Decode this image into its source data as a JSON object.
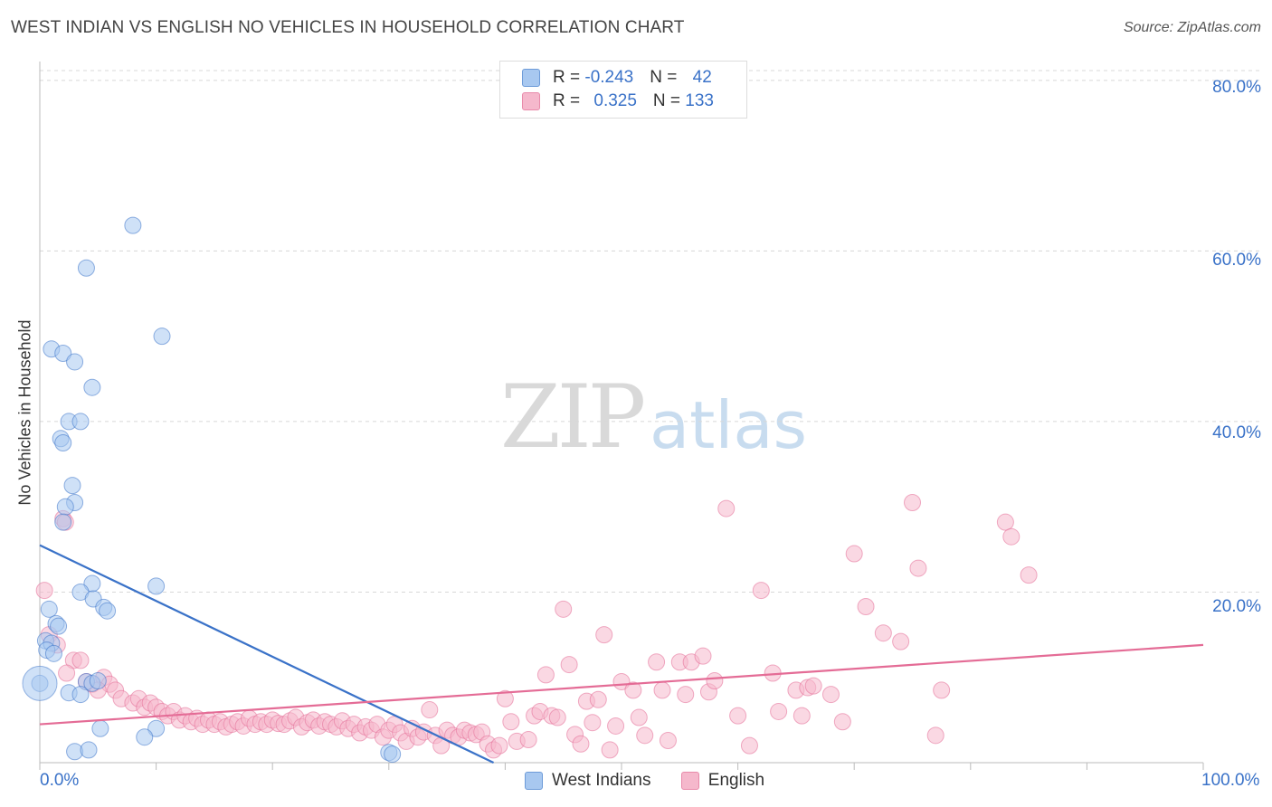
{
  "title": "WEST INDIAN VS ENGLISH NO VEHICLES IN HOUSEHOLD CORRELATION CHART",
  "source": "Source: ZipAtlas.com",
  "watermark": {
    "zip": "ZIP",
    "atlas": "atlas"
  },
  "legend": {
    "rows": [
      {
        "r_label": "R = ",
        "r_value": "-0.243",
        "n_label": "N = ",
        "n_value": "42",
        "color": "#a8c8f0"
      },
      {
        "r_label": "R = ",
        "r_value": "0.325",
        "n_label": "N = ",
        "n_value": "133",
        "color": "#f5b8cc"
      }
    ]
  },
  "bottom_legend": [
    {
      "label": "West Indians",
      "color": "#a8c8f0"
    },
    {
      "label": "English",
      "color": "#f5b8cc"
    }
  ],
  "y_ticks": [
    "80.0%",
    "60.0%",
    "40.0%",
    "20.0%"
  ],
  "x_ticks": {
    "left": "0.0%",
    "right": "100.0%"
  },
  "chart_data": {
    "type": "scatter",
    "title": "WEST INDIAN VS ENGLISH NO VEHICLES IN HOUSEHOLD CORRELATION CHART",
    "xlabel": "",
    "ylabel": "No Vehicles in Household",
    "xlim": [
      0,
      100
    ],
    "ylim": [
      0,
      82
    ],
    "series": [
      {
        "name": "West Indians",
        "color": "#3a72c8",
        "fill": "#a8c8f0",
        "trend": {
          "x0": 0,
          "y0": 25.5,
          "x1": 39,
          "y1": 0
        },
        "points": [
          [
            8,
            63
          ],
          [
            4,
            58
          ],
          [
            10.5,
            50
          ],
          [
            1,
            48.5
          ],
          [
            2,
            48
          ],
          [
            3,
            47
          ],
          [
            4.5,
            44
          ],
          [
            2.5,
            40
          ],
          [
            3.5,
            40
          ],
          [
            1.8,
            38
          ],
          [
            2,
            37.5
          ],
          [
            2.8,
            32.5
          ],
          [
            3,
            30.5
          ],
          [
            2.2,
            30
          ],
          [
            2,
            28.2
          ],
          [
            10,
            20.7
          ],
          [
            4.5,
            21
          ],
          [
            3.5,
            20
          ],
          [
            4.6,
            19.2
          ],
          [
            0.8,
            18
          ],
          [
            5.5,
            18.2
          ],
          [
            5.8,
            17.8
          ],
          [
            1.4,
            16.3
          ],
          [
            1.6,
            16
          ],
          [
            0.5,
            14.3
          ],
          [
            1,
            14
          ],
          [
            0.6,
            13.2
          ],
          [
            1.2,
            12.8
          ],
          [
            4,
            9.5
          ],
          [
            4.5,
            9.3
          ],
          [
            5,
            9.6
          ],
          [
            0,
            9.3
          ],
          [
            2.5,
            8.2
          ],
          [
            3.5,
            8
          ],
          [
            5.2,
            4
          ],
          [
            10,
            4
          ],
          [
            9,
            3
          ],
          [
            3,
            1.3
          ],
          [
            4.2,
            1.5
          ],
          [
            30,
            1.2
          ],
          [
            30.3,
            1
          ]
        ]
      },
      {
        "name": "English",
        "color": "#e46c96",
        "fill": "#f5b8cc",
        "trend": {
          "x0": 0,
          "y0": 4.5,
          "x1": 100,
          "y1": 13.8
        },
        "points": [
          [
            0.4,
            20.2
          ],
          [
            2,
            28.6
          ],
          [
            2.2,
            28.2
          ],
          [
            0.8,
            15
          ],
          [
            1.5,
            13.8
          ],
          [
            2.9,
            12
          ],
          [
            3.5,
            12
          ],
          [
            2.3,
            10.5
          ],
          [
            4.5,
            9.2
          ],
          [
            5.5,
            10
          ],
          [
            6,
            9.2
          ],
          [
            4,
            9.5
          ],
          [
            5,
            8.5
          ],
          [
            6.5,
            8.5
          ],
          [
            7,
            7.5
          ],
          [
            8,
            7
          ],
          [
            8.5,
            7.5
          ],
          [
            9,
            6.5
          ],
          [
            9.5,
            7
          ],
          [
            10,
            6.5
          ],
          [
            10.5,
            6
          ],
          [
            11,
            5.5
          ],
          [
            11.5,
            6
          ],
          [
            12,
            5
          ],
          [
            12.5,
            5.5
          ],
          [
            13,
            4.8
          ],
          [
            13.5,
            5.2
          ],
          [
            14,
            4.5
          ],
          [
            14.5,
            5
          ],
          [
            15,
            4.5
          ],
          [
            15.5,
            4.8
          ],
          [
            16,
            4.2
          ],
          [
            16.5,
            4.5
          ],
          [
            17,
            4.8
          ],
          [
            17.5,
            4.3
          ],
          [
            18,
            5.2
          ],
          [
            18.5,
            4.5
          ],
          [
            19,
            4.8
          ],
          [
            19.5,
            4.5
          ],
          [
            20,
            5
          ],
          [
            20.5,
            4.6
          ],
          [
            21,
            4.5
          ],
          [
            21.5,
            4.9
          ],
          [
            22,
            5.3
          ],
          [
            22.5,
            4.2
          ],
          [
            23,
            4.7
          ],
          [
            23.5,
            5
          ],
          [
            24,
            4.3
          ],
          [
            24.5,
            4.8
          ],
          [
            25,
            4.5
          ],
          [
            25.5,
            4.2
          ],
          [
            26,
            4.9
          ],
          [
            26.5,
            4
          ],
          [
            27,
            4.5
          ],
          [
            27.5,
            3.5
          ],
          [
            28,
            4.2
          ],
          [
            28.5,
            3.8
          ],
          [
            29,
            4.5
          ],
          [
            29.5,
            3
          ],
          [
            30,
            3.8
          ],
          [
            30.5,
            4.5
          ],
          [
            31,
            3.5
          ],
          [
            31.5,
            2.5
          ],
          [
            32,
            4
          ],
          [
            32.5,
            3
          ],
          [
            33,
            3.6
          ],
          [
            33.5,
            6.2
          ],
          [
            34,
            3.2
          ],
          [
            34.5,
            2
          ],
          [
            35,
            3.8
          ],
          [
            35.5,
            3.2
          ],
          [
            36,
            3
          ],
          [
            36.5,
            3.8
          ],
          [
            37,
            3.5
          ],
          [
            37.5,
            3.3
          ],
          [
            38,
            3.6
          ],
          [
            38.5,
            2.2
          ],
          [
            39,
            1.5
          ],
          [
            39.5,
            2
          ],
          [
            40,
            7.5
          ],
          [
            40.5,
            4.8
          ],
          [
            41,
            2.5
          ],
          [
            42,
            2.7
          ],
          [
            42.5,
            5.5
          ],
          [
            43,
            6
          ],
          [
            43.5,
            10.3
          ],
          [
            44,
            5.5
          ],
          [
            44.5,
            5.3
          ],
          [
            45,
            18
          ],
          [
            45.5,
            11.5
          ],
          [
            46,
            3.3
          ],
          [
            46.5,
            2.2
          ],
          [
            47,
            7.2
          ],
          [
            47.5,
            4.7
          ],
          [
            48,
            7.4
          ],
          [
            48.5,
            15
          ],
          [
            49,
            1.5
          ],
          [
            49.5,
            4.3
          ],
          [
            50,
            9.5
          ],
          [
            51,
            8.5
          ],
          [
            51.5,
            5.3
          ],
          [
            52,
            3.2
          ],
          [
            53,
            11.8
          ],
          [
            53.5,
            8.5
          ],
          [
            54,
            2.6
          ],
          [
            55,
            11.8
          ],
          [
            55.5,
            8
          ],
          [
            56,
            11.8
          ],
          [
            57,
            12.5
          ],
          [
            57.5,
            8.3
          ],
          [
            58,
            9.6
          ],
          [
            59,
            29.8
          ],
          [
            60,
            5.5
          ],
          [
            61,
            2
          ],
          [
            62,
            20.2
          ],
          [
            63,
            10.5
          ],
          [
            63.5,
            6
          ],
          [
            65,
            8.5
          ],
          [
            65.5,
            5.5
          ],
          [
            66,
            8.8
          ],
          [
            66.5,
            9
          ],
          [
            68,
            8
          ],
          [
            69,
            4.8
          ],
          [
            70,
            24.5
          ],
          [
            71,
            18.3
          ],
          [
            72.5,
            15.2
          ],
          [
            74,
            14.2
          ],
          [
            75,
            30.5
          ],
          [
            75.5,
            22.8
          ],
          [
            77,
            3.2
          ],
          [
            77.5,
            8.5
          ],
          [
            83,
            28.2
          ],
          [
            83.5,
            26.5
          ],
          [
            85,
            22
          ]
        ]
      }
    ]
  }
}
